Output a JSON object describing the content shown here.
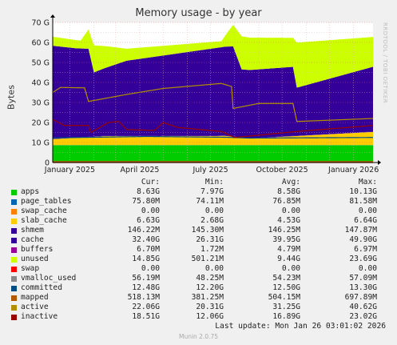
{
  "title": "Memory usage - by year",
  "ylabel": "Bytes",
  "side_text": "RRDTOOL / TOBI OETIKER",
  "chart_data": {
    "type": "area",
    "title": "Memory usage - by year",
    "ylabel": "Bytes",
    "ylim": [
      0,
      70
    ],
    "y_ticks": [
      "0",
      "10 G",
      "20 G",
      "30 G",
      "40 G",
      "50 G",
      "60 G",
      "70 G"
    ],
    "x_ticks": [
      "January 2025",
      "April 2025",
      "July 2025",
      "October 2025",
      "January 2026"
    ],
    "x_range": [
      "2024-12-10",
      "2026-01-26"
    ],
    "grid": true,
    "stacked_series": [
      {
        "name": "apps",
        "color": "#00cc00",
        "points": [
          [
            "2024-12-10",
            8.6
          ],
          [
            "2026-01-26",
            8.6
          ]
        ]
      },
      {
        "name": "page_tables",
        "color": "#0066b3",
        "points": [
          [
            "2024-12-10",
            0.08
          ],
          [
            "2026-01-26",
            0.08
          ]
        ]
      },
      {
        "name": "swap_cache",
        "color": "#ff8000",
        "points": [
          [
            "2024-12-10",
            0
          ],
          [
            "2026-01-26",
            0
          ]
        ]
      },
      {
        "name": "slab_cache",
        "color": "#ffcc00",
        "points": [
          [
            "2024-12-10",
            3.0
          ],
          [
            "2025-02-15",
            4.5
          ],
          [
            "2025-07-20",
            4.6
          ],
          [
            "2025-08-20",
            3.3
          ],
          [
            "2026-01-26",
            6.6
          ]
        ]
      },
      {
        "name": "shmem",
        "color": "#330099",
        "points": [
          [
            "2024-12-10",
            0.15
          ],
          [
            "2026-01-26",
            0.15
          ]
        ]
      },
      {
        "name": "cache",
        "color": "#330099",
        "points": [
          [
            "2024-12-10",
            46.5
          ],
          [
            "2025-01-10",
            44.5
          ],
          [
            "2025-01-25",
            44.0
          ],
          [
            "2025-02-01",
            32.0
          ],
          [
            "2025-03-15",
            37.5
          ],
          [
            "2025-07-30",
            45.0
          ],
          [
            "2025-08-10",
            34.0
          ],
          [
            "2025-10-15",
            34.5
          ],
          [
            "2025-10-20",
            24.0
          ],
          [
            "2026-01-26",
            32.4
          ]
        ]
      },
      {
        "name": "buffers",
        "color": "#990099",
        "points": [
          [
            "2024-12-10",
            0.0067
          ],
          [
            "2026-01-26",
            0.0067
          ]
        ]
      },
      {
        "name": "unused",
        "color": "#ccff00",
        "points": [
          [
            "2024-12-10",
            4.5
          ],
          [
            "2025-01-15",
            4.0
          ],
          [
            "2025-02-01",
            13.5
          ],
          [
            "2025-03-15",
            6.0
          ],
          [
            "2025-07-15",
            3.0
          ],
          [
            "2025-08-10",
            16.5
          ],
          [
            "2025-10-15",
            14.5
          ],
          [
            "2025-10-20",
            22.5
          ],
          [
            "2026-01-26",
            14.9
          ]
        ]
      }
    ],
    "line_series": [
      {
        "name": "swap",
        "color": "#ff0000",
        "points": [
          [
            "2024-12-10",
            0
          ],
          [
            "2026-01-26",
            0
          ]
        ]
      },
      {
        "name": "vmalloc_used",
        "color": "#888888",
        "points": [
          [
            "2024-12-10",
            0.05
          ],
          [
            "2026-01-26",
            0.06
          ]
        ]
      },
      {
        "name": "committed",
        "color": "#004d86",
        "points": [
          [
            "2024-12-10",
            12.3
          ],
          [
            "2025-04-10",
            13.0
          ],
          [
            "2025-07-20",
            12.6
          ],
          [
            "2025-08-20",
            12.2
          ],
          [
            "2026-01-26",
            12.5
          ]
        ]
      },
      {
        "name": "mapped",
        "color": "#b35a00",
        "points": [
          [
            "2024-12-10",
            0.5
          ],
          [
            "2026-01-26",
            0.5
          ]
        ]
      },
      {
        "name": "active",
        "color": "#b38f00",
        "points": [
          [
            "2024-12-10",
            35.0
          ],
          [
            "2024-12-20",
            37.5
          ],
          [
            "2025-01-20",
            37.3
          ],
          [
            "2025-01-25",
            30.5
          ],
          [
            "2025-03-15",
            34.0
          ],
          [
            "2025-05-01",
            37.0
          ],
          [
            "2025-07-15",
            39.5
          ],
          [
            "2025-07-28",
            38.0
          ],
          [
            "2025-07-30",
            27.0
          ],
          [
            "2025-09-01",
            29.5
          ],
          [
            "2025-10-15",
            29.5
          ],
          [
            "2025-10-20",
            20.5
          ],
          [
            "2026-01-26",
            22.0
          ]
        ]
      },
      {
        "name": "inactive",
        "color": "#990000",
        "points": [
          [
            "2024-12-10",
            21.5
          ],
          [
            "2024-12-25",
            18.5
          ],
          [
            "2025-01-25",
            18.5
          ],
          [
            "2025-01-28",
            15.0
          ],
          [
            "2025-02-20",
            20.0
          ],
          [
            "2025-03-05",
            20.5
          ],
          [
            "2025-03-15",
            16.5
          ],
          [
            "2025-04-20",
            16.0
          ],
          [
            "2025-05-01",
            20.0
          ],
          [
            "2025-05-20",
            17.5
          ],
          [
            "2025-07-15",
            15.5
          ],
          [
            "2025-08-01",
            12.5
          ],
          [
            "2025-10-20",
            15.5
          ],
          [
            "2026-01-26",
            18.5
          ]
        ]
      }
    ]
  },
  "legend": {
    "headers": {
      "cur": "Cur:",
      "min": "Min:",
      "avg": "Avg:",
      "max": "Max:"
    },
    "rows": [
      {
        "name": "apps",
        "color": "#00cc00",
        "cur": "8.63G",
        "min": "7.97G",
        "avg": "8.58G",
        "max": "10.13G"
      },
      {
        "name": "page_tables",
        "color": "#0066b3",
        "cur": "75.80M",
        "min": "74.11M",
        "avg": "76.85M",
        "max": "81.58M"
      },
      {
        "name": "swap_cache",
        "color": "#ff8000",
        "cur": "0.00",
        "min": "0.00",
        "avg": "0.00",
        "max": "0.00"
      },
      {
        "name": "slab_cache",
        "color": "#ffcc00",
        "cur": "6.63G",
        "min": "2.68G",
        "avg": "4.53G",
        "max": "6.64G"
      },
      {
        "name": "shmem",
        "color": "#330099",
        "cur": "146.22M",
        "min": "145.30M",
        "avg": "146.25M",
        "max": "147.87M"
      },
      {
        "name": "cache",
        "color": "#330099",
        "cur": "32.40G",
        "min": "26.31G",
        "avg": "39.95G",
        "max": "49.90G"
      },
      {
        "name": "buffers",
        "color": "#990099",
        "cur": "6.70M",
        "min": "1.72M",
        "avg": "4.79M",
        "max": "6.97M"
      },
      {
        "name": "unused",
        "color": "#ccff00",
        "cur": "14.85G",
        "min": "501.21M",
        "avg": "9.44G",
        "max": "23.69G"
      },
      {
        "name": "swap",
        "color": "#ff0000",
        "cur": "0.00",
        "min": "0.00",
        "avg": "0.00",
        "max": "0.00"
      },
      {
        "name": "vmalloc_used",
        "color": "#888888",
        "cur": "56.19M",
        "min": "48.25M",
        "avg": "54.23M",
        "max": "57.09M"
      },
      {
        "name": "committed",
        "color": "#004d86",
        "cur": "12.48G",
        "min": "12.20G",
        "avg": "12.50G",
        "max": "13.30G"
      },
      {
        "name": "mapped",
        "color": "#b35a00",
        "cur": "518.13M",
        "min": "381.25M",
        "avg": "504.15M",
        "max": "697.89M"
      },
      {
        "name": "active",
        "color": "#b38f00",
        "cur": "22.06G",
        "min": "20.31G",
        "avg": "31.25G",
        "max": "40.62G"
      },
      {
        "name": "inactive",
        "color": "#990000",
        "cur": "18.51G",
        "min": "12.06G",
        "avg": "16.89G",
        "max": "23.02G"
      }
    ]
  },
  "last_update": "Last update: Mon Jan 26 03:01:02 2026",
  "footer": "Munin 2.0.75"
}
